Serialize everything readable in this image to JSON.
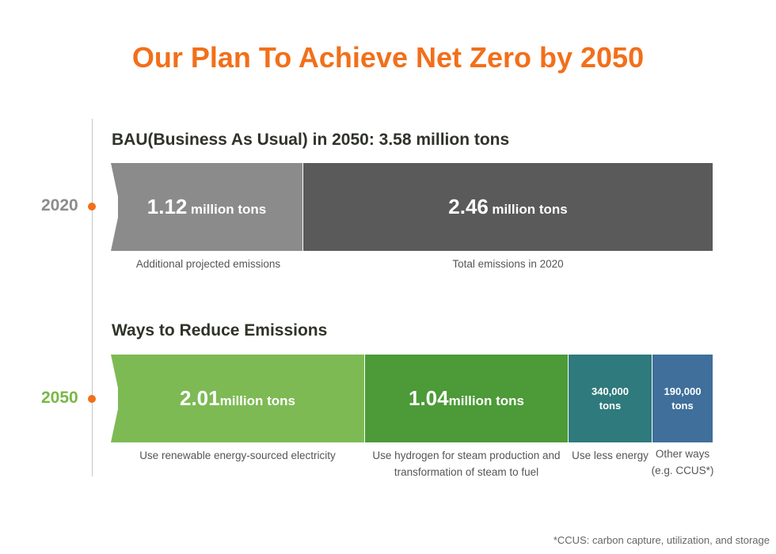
{
  "title": "Our Plan To Achieve Net Zero by 2050",
  "timeline": {
    "year_2020": "2020",
    "year_2050": "2050",
    "accent_color": "#f26f1a"
  },
  "bau": {
    "heading": "BAU(Business As Usual) in 2050: 3.58 million tons",
    "segments": [
      {
        "value": "1.12",
        "unit": "million tons",
        "caption": "Additional projected emissions",
        "color": "#8b8b8b"
      },
      {
        "value": "2.46",
        "unit": "million tons",
        "caption": "Total emissions in 2020",
        "color": "#5a5a5a"
      }
    ]
  },
  "reduce": {
    "heading": "Ways to Reduce Emissions",
    "segments": [
      {
        "value": "2.01",
        "unit": "million tons",
        "caption": "Use renewable energy-sourced electricity",
        "color": "#7dba54"
      },
      {
        "value": "1.04",
        "unit": "million tons",
        "caption": "Use hydrogen for steam production and transformation of steam to fuel",
        "color": "#4c9a38"
      },
      {
        "value": "340,000",
        "unit": "tons",
        "caption": "Use less energy",
        "color": "#2f7a7c"
      },
      {
        "value": "190,000",
        "unit": "tons",
        "caption": "Other ways (e.g. CCUS*)",
        "color": "#3f6f9a"
      }
    ]
  },
  "footnote": "*CCUS: carbon capture, utilization, and storage"
}
